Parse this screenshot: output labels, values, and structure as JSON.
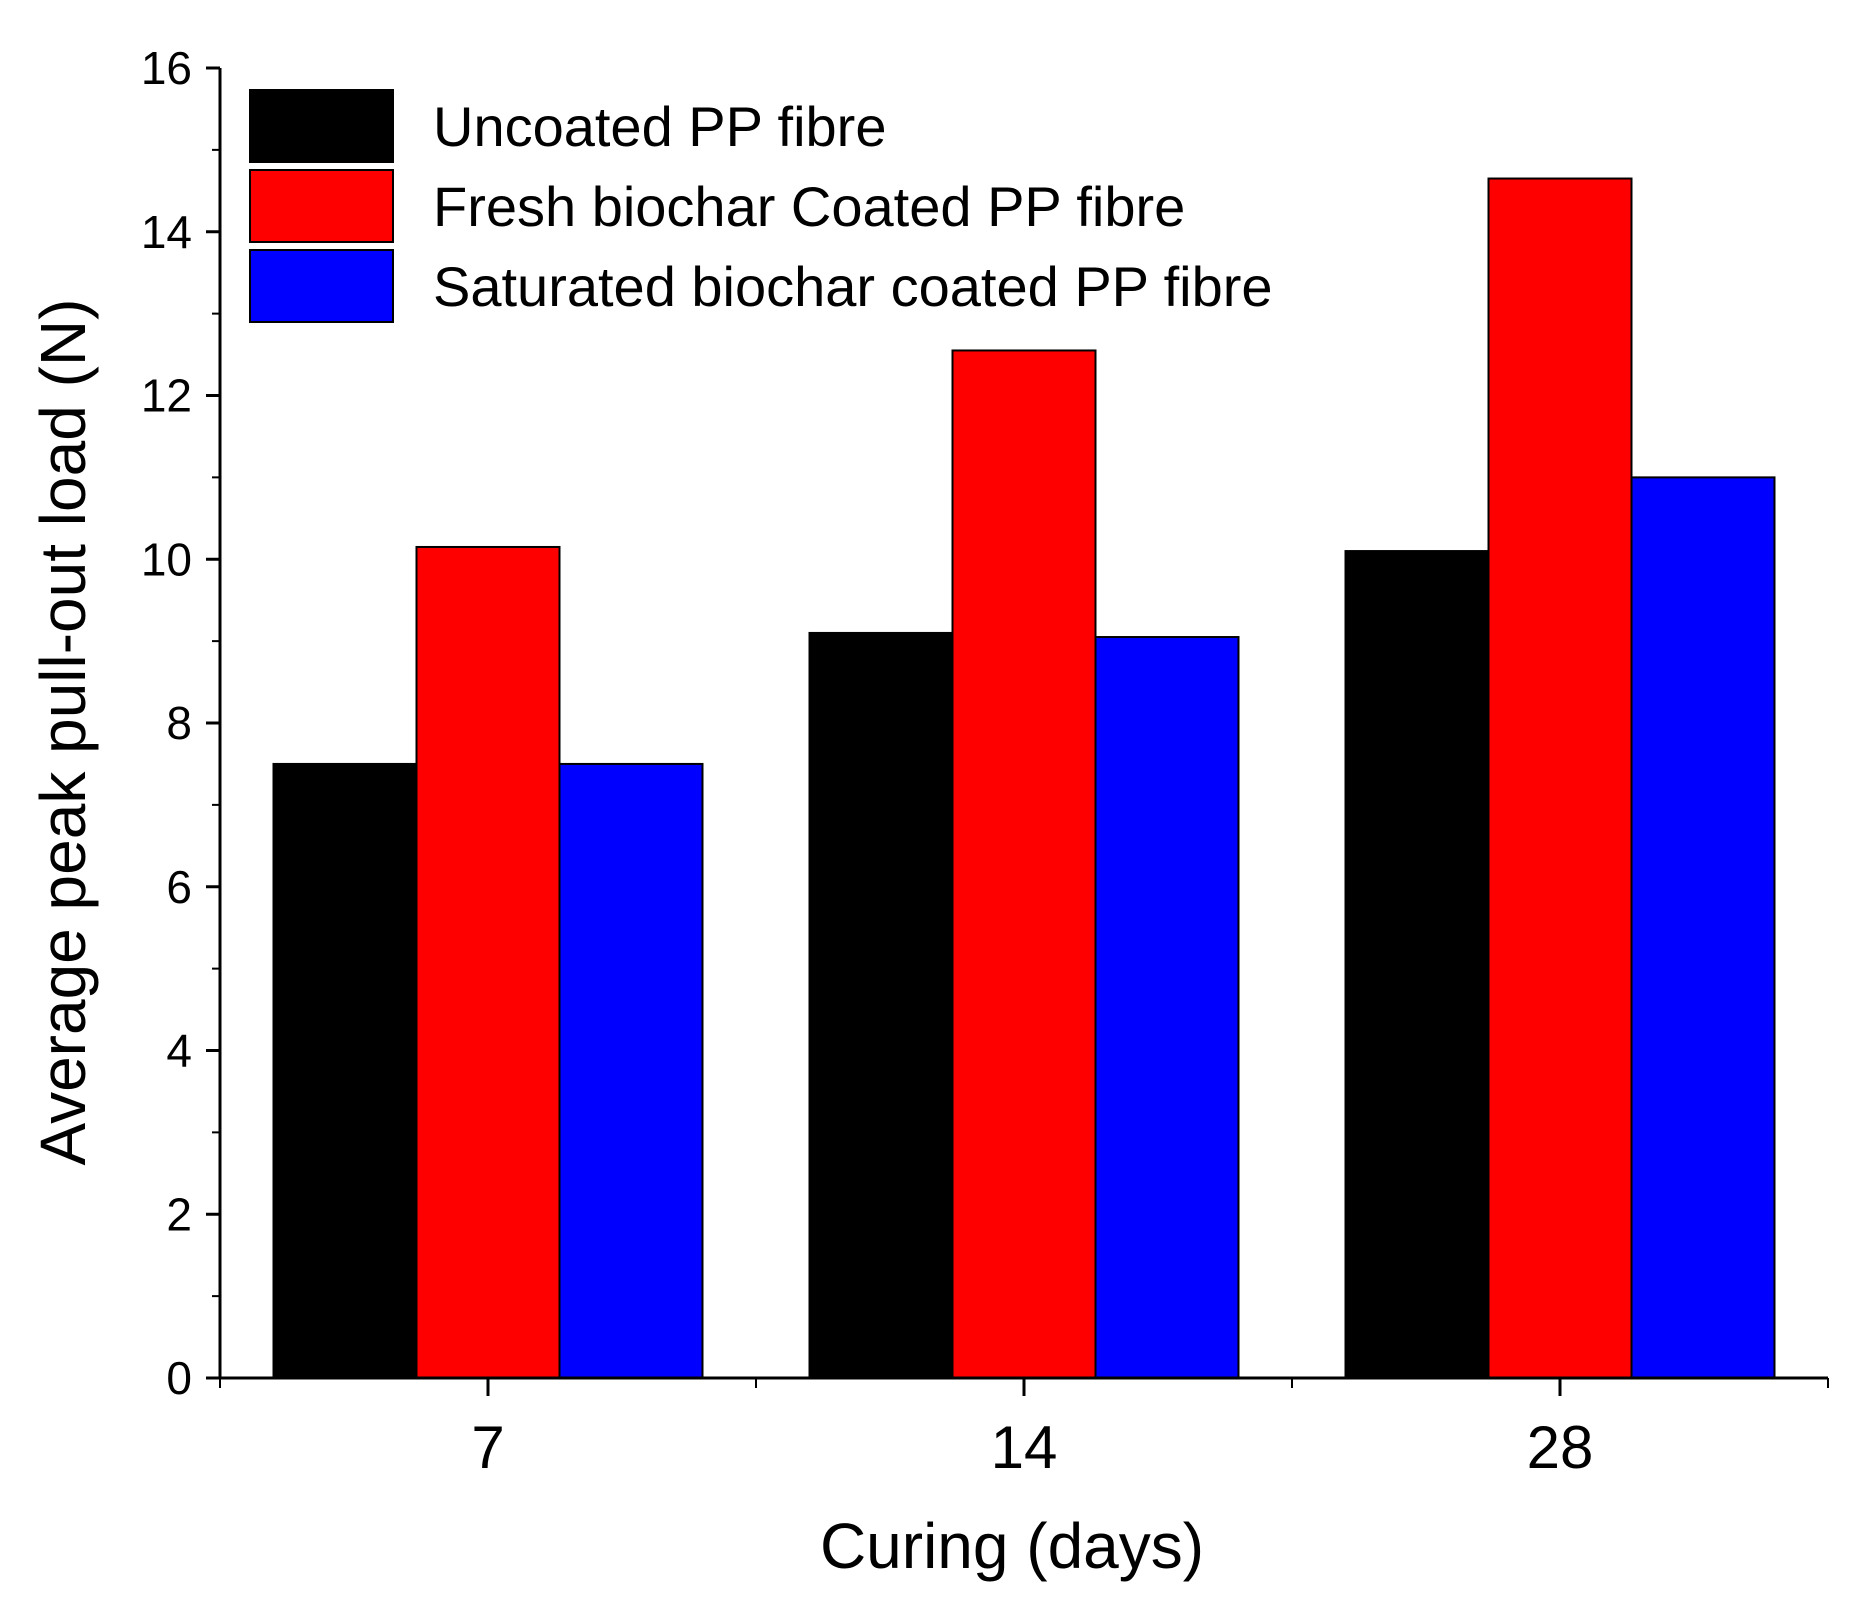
{
  "chart_data": {
    "type": "bar",
    "title": "",
    "xlabel": "Curing (days)",
    "ylabel": "Average peak pull-out load (N)",
    "categories": [
      "7",
      "14",
      "28"
    ],
    "ylim": [
      0,
      16
    ],
    "yticks": [
      0,
      2,
      4,
      6,
      8,
      10,
      12,
      14,
      16
    ],
    "yticklabels": [
      "0",
      "2",
      "4",
      "6",
      "8",
      "10",
      "12",
      "14",
      "16"
    ],
    "series": [
      {
        "name": "Uncoated PP fibre",
        "color": "#000000",
        "values": [
          7.5,
          9.1,
          10.1
        ]
      },
      {
        "name": "Fresh biochar Coated PP fibre",
        "color": "#ff0000",
        "values": [
          10.15,
          12.55,
          14.65
        ]
      },
      {
        "name": "Saturated biochar coated PP fibre",
        "color": "#0000ff",
        "values": [
          7.5,
          9.05,
          11.0
        ]
      }
    ],
    "legend_position": "top-left",
    "grid": false
  }
}
